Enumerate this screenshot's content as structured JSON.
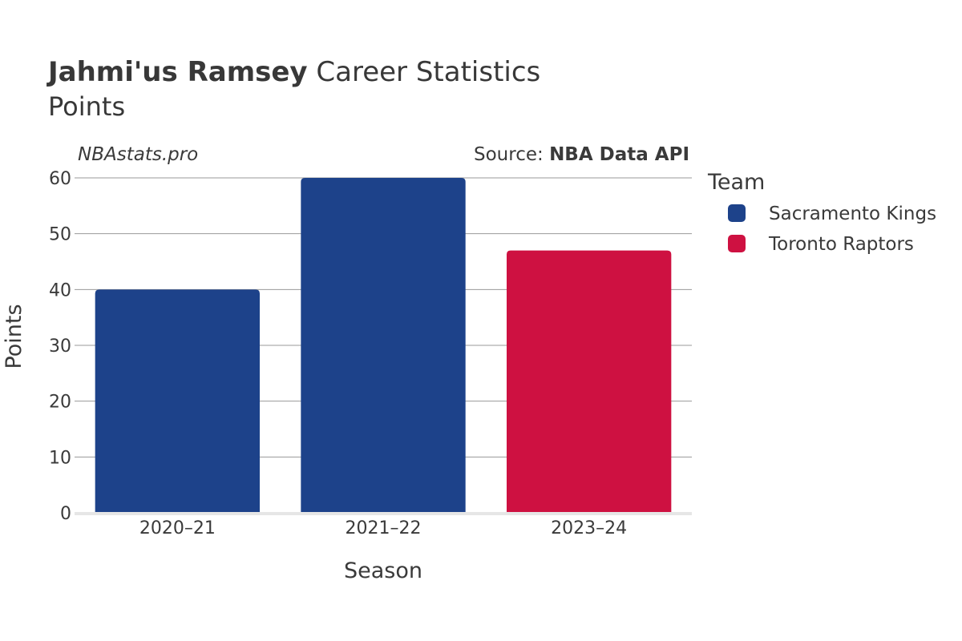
{
  "title": {
    "name": "Jahmi'us Ramsey",
    "rest": " Career Statistics",
    "subtitle": "Points"
  },
  "credit": "NBAstats.pro",
  "source": {
    "prefix": "Source: ",
    "name": "NBA Data API"
  },
  "legend": {
    "title": "Team",
    "items": [
      {
        "label": "Sacramento Kings",
        "color": "#1d428a"
      },
      {
        "label": "Toronto Raptors",
        "color": "#ce1141"
      }
    ]
  },
  "chart_data": {
    "type": "bar",
    "categories": [
      "2020–21",
      "2021–22",
      "2023–24"
    ],
    "values": [
      40,
      60,
      47
    ],
    "teams": [
      "Sacramento Kings",
      "Sacramento Kings",
      "Toronto Raptors"
    ],
    "colors": [
      "#1d428a",
      "#1d428a",
      "#ce1141"
    ],
    "xlabel": "Season",
    "ylabel": "Points",
    "ylim": [
      0,
      60
    ],
    "yticks": [
      0,
      10,
      20,
      30,
      40,
      50,
      60
    ],
    "grid": true,
    "legend_placement": "right"
  }
}
